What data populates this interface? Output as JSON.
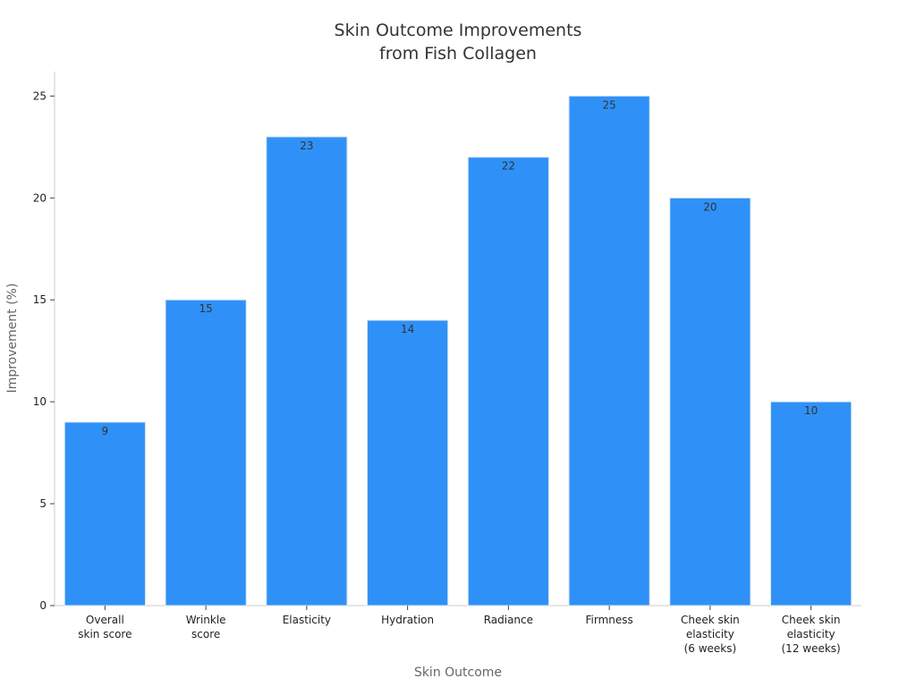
{
  "chart_data": {
    "type": "bar",
    "title": [
      "Skin Outcome Improvements",
      "from Fish Collagen"
    ],
    "xlabel": "Skin Outcome",
    "ylabel": "Improvement (%)",
    "categories": [
      [
        "Overall",
        "skin score"
      ],
      [
        "Wrinkle",
        "score"
      ],
      [
        "Elasticity"
      ],
      [
        "Hydration"
      ],
      [
        "Radiance"
      ],
      [
        "Firmness"
      ],
      [
        "Cheek skin",
        "elasticity",
        "(6 weeks)"
      ],
      [
        "Cheek skin",
        "elasticity",
        "(12 weeks)"
      ]
    ],
    "values": [
      9,
      15,
      23,
      14,
      22,
      25,
      20,
      10
    ],
    "ylim": [
      0,
      26.2
    ],
    "yticks": [
      0,
      5,
      10,
      15,
      20,
      25
    ],
    "grid": false,
    "bar_color": "#2f91f7",
    "bar_edge_color": "#d9e6f2"
  }
}
